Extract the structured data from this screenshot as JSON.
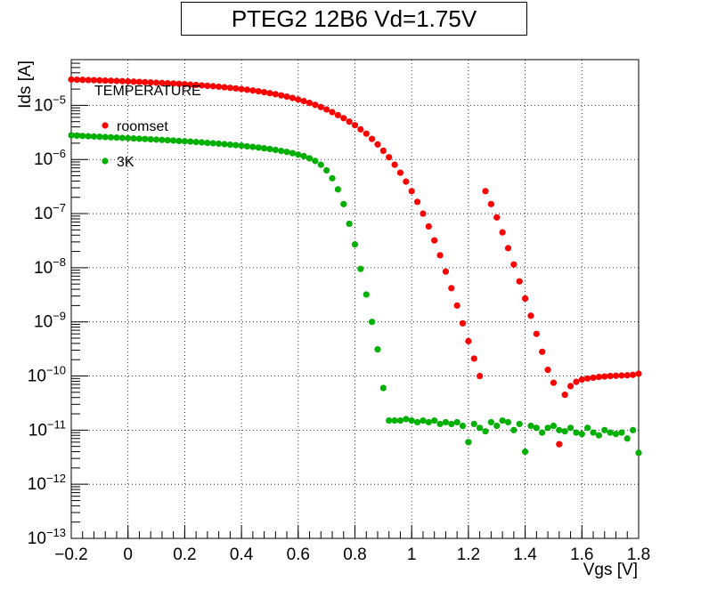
{
  "chart_data": {
    "type": "scatter",
    "title": "PTEG2 12B6 Vd=1.75V",
    "xlabel": "Vgs [V]",
    "ylabel": "Ids [A]",
    "xlim": [
      -0.2,
      1.8
    ],
    "ylim": [
      1e-13,
      7e-05
    ],
    "yscale": "log",
    "grid": true,
    "x_ticks": [
      "−0.2",
      "0",
      "0.2",
      "0.4",
      "0.6",
      "0.8",
      "1",
      "1.2",
      "1.4",
      "1.6",
      "1.8"
    ],
    "x_tick_values": [
      -0.2,
      0,
      0.2,
      0.4,
      0.6,
      0.8,
      1.0,
      1.2,
      1.4,
      1.6,
      1.8
    ],
    "y_tick_exponents": [
      -13,
      -12,
      -11,
      -10,
      -9,
      -8,
      -7,
      -6,
      -5
    ],
    "legend": {
      "title": "TEMPERATURE",
      "placement": "top-left",
      "entries": [
        "roomset",
        "3K"
      ]
    },
    "series": [
      {
        "name": "roomset",
        "color": "#ff0000",
        "x": [
          -0.2,
          -0.18,
          -0.16,
          -0.14,
          -0.12,
          -0.1,
          -0.08,
          -0.06,
          -0.04,
          -0.02,
          0,
          0.02,
          0.04,
          0.06,
          0.08,
          0.1,
          0.12,
          0.14,
          0.16,
          0.18,
          0.2,
          0.22,
          0.24,
          0.26,
          0.28,
          0.3,
          0.32,
          0.34,
          0.36,
          0.38,
          0.4,
          0.42,
          0.44,
          0.46,
          0.48,
          0.5,
          0.52,
          0.54,
          0.56,
          0.58,
          0.6,
          0.62,
          0.64,
          0.66,
          0.68,
          0.7,
          0.72,
          0.74,
          0.76,
          0.78,
          0.8,
          0.82,
          0.84,
          0.86,
          0.88,
          0.9,
          0.92,
          0.94,
          0.96,
          0.98,
          1.0,
          1.02,
          1.04,
          1.06,
          1.08,
          1.1,
          1.12,
          1.14,
          1.16,
          1.18,
          1.2,
          1.22,
          1.24,
          1.26,
          1.28,
          1.3,
          1.32,
          1.34,
          1.36,
          1.38,
          1.4,
          1.42,
          1.44,
          1.46,
          1.48,
          1.5,
          1.52,
          1.54,
          1.56,
          1.58,
          1.6,
          1.62,
          1.64,
          1.66,
          1.68,
          1.7,
          1.72,
          1.74,
          1.76,
          1.78,
          1.8
        ],
        "y": [
          3e-05,
          2.98e-05,
          2.96e-05,
          2.94e-05,
          2.92e-05,
          2.9e-05,
          2.87e-05,
          2.85e-05,
          2.82e-05,
          2.8e-05,
          2.77e-05,
          2.74e-05,
          2.71e-05,
          2.68e-05,
          2.65e-05,
          2.62e-05,
          2.59e-05,
          2.56e-05,
          2.53e-05,
          2.5e-05,
          2.46e-05,
          2.42e-05,
          2.38e-05,
          2.34e-05,
          2.3e-05,
          2.26e-05,
          2.21e-05,
          2.16e-05,
          2.11e-05,
          2.06e-05,
          2e-05,
          1.94e-05,
          1.88e-05,
          1.82e-05,
          1.75e-05,
          1.68e-05,
          1.61e-05,
          1.53e-05,
          1.45e-05,
          1.37e-05,
          1.28e-05,
          1.2e-05,
          1.11e-05,
          1.02e-05,
          9.3e-06,
          8.4e-06,
          7.5e-06,
          6.6e-06,
          5.8e-06,
          5e-06,
          4.3e-06,
          3.6e-06,
          3e-06,
          2.4e-06,
          1.9e-06,
          1.45e-06,
          1.1e-06,
          8e-07,
          5.7e-07,
          3.9e-07,
          2.6e-07,
          1.65e-07,
          1e-07,
          5.8e-08,
          3.2e-08,
          1.7e-08,
          8.5e-09,
          4.2e-09,
          2e-09,
          9.4e-10,
          4.4e-10,
          2.1e-10,
          1e-10,
          2.6e-07,
          1.5e-07,
          8.5e-08,
          4.5e-08,
          2.3e-08,
          1.15e-08,
          5.6e-09,
          2.7e-09,
          1.3e-09,
          6e-10,
          2.8e-10,
          1.3e-10,
          7.5e-11,
          5.5e-12,
          4.5e-11,
          6.5e-11,
          7.8e-11,
          8.6e-11,
          9e-11,
          9.3e-11,
          9.6e-11,
          9.8e-11,
          1e-10,
          1.01e-10,
          1.02e-10,
          1.03e-10,
          1.05e-10,
          1.1e-10
        ]
      },
      {
        "name": "3K",
        "color": "#00b000",
        "x": [
          -0.2,
          -0.18,
          -0.16,
          -0.14,
          -0.12,
          -0.1,
          -0.08,
          -0.06,
          -0.04,
          -0.02,
          0,
          0.02,
          0.04,
          0.06,
          0.08,
          0.1,
          0.12,
          0.14,
          0.16,
          0.18,
          0.2,
          0.22,
          0.24,
          0.26,
          0.28,
          0.3,
          0.32,
          0.34,
          0.36,
          0.38,
          0.4,
          0.42,
          0.44,
          0.46,
          0.48,
          0.5,
          0.52,
          0.54,
          0.56,
          0.58,
          0.6,
          0.62,
          0.64,
          0.66,
          0.68,
          0.7,
          0.72,
          0.74,
          0.76,
          0.78,
          0.8,
          0.82,
          0.84,
          0.86,
          0.88,
          0.9,
          0.92,
          0.94,
          0.96,
          0.98,
          1.0,
          1.02,
          1.04,
          1.06,
          1.08,
          1.1,
          1.12,
          1.14,
          1.16,
          1.18,
          1.2,
          1.22,
          1.24,
          1.26,
          1.28,
          1.3,
          1.32,
          1.34,
          1.36,
          1.38,
          1.4,
          1.42,
          1.44,
          1.46,
          1.48,
          1.5,
          1.52,
          1.54,
          1.56,
          1.58,
          1.6,
          1.62,
          1.64,
          1.66,
          1.68,
          1.7,
          1.72,
          1.74,
          1.76,
          1.78,
          1.8
        ],
        "y": [
          2.8e-06,
          2.75e-06,
          2.72e-06,
          2.69e-06,
          2.66e-06,
          2.63e-06,
          2.6e-06,
          2.57e-06,
          2.54e-06,
          2.51e-06,
          2.48e-06,
          2.45e-06,
          2.42e-06,
          2.39e-06,
          2.36e-06,
          2.33e-06,
          2.3e-06,
          2.27e-06,
          2.24e-06,
          2.2e-06,
          2.17e-06,
          2.14e-06,
          2.1e-06,
          2.07e-06,
          2.03e-06,
          2e-06,
          1.96e-06,
          1.92e-06,
          1.88e-06,
          1.84e-06,
          1.8e-06,
          1.75e-06,
          1.71e-06,
          1.66e-06,
          1.61e-06,
          1.56e-06,
          1.5e-06,
          1.44e-06,
          1.38e-06,
          1.31e-06,
          1.23e-06,
          1.15e-06,
          1.05e-06,
          9.4e-07,
          8e-07,
          6.3e-07,
          4.5e-07,
          2.8e-07,
          1.5e-07,
          6.5e-08,
          2.7e-08,
          9.5e-09,
          3.2e-09,
          1e-09,
          3.1e-10,
          6e-11,
          1.5e-11,
          1.5e-11,
          1.5e-11,
          1.6e-11,
          1.5e-11,
          1.4e-11,
          1.5e-11,
          1.4e-11,
          1.5e-11,
          1.3e-11,
          1.4e-11,
          1.3e-11,
          1.4e-11,
          1.2e-11,
          6e-12,
          1.3e-11,
          1.1e-11,
          9.5e-12,
          1.4e-11,
          1.2e-11,
          1.5e-11,
          1.4e-11,
          1e-11,
          1.3e-11,
          4e-12,
          1.2e-11,
          1.1e-11,
          9e-12,
          1.1e-11,
          1.2e-11,
          1e-11,
          9.5e-12,
          1.1e-11,
          9e-12,
          8.5e-12,
          1.1e-11,
          9e-12,
          8e-12,
          1e-11,
          9e-12,
          8.5e-12,
          9e-12,
          7e-12,
          1e-11,
          3.8e-12
        ]
      }
    ]
  }
}
